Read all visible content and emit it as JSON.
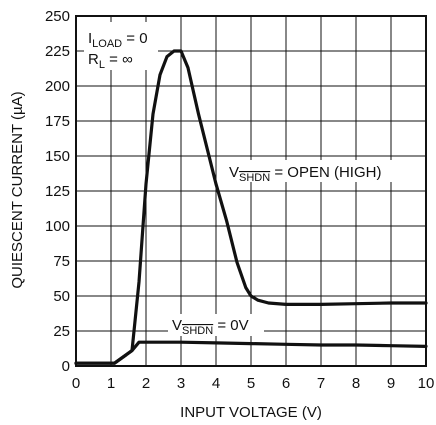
{
  "chart_data": {
    "type": "line",
    "xlabel": "INPUT VOLTAGE (V)",
    "ylabel": "QUIESCENT CURRENT (µA)",
    "xlim": [
      0,
      10
    ],
    "ylim": [
      0,
      250
    ],
    "x_ticks": [
      "0",
      "1",
      "2",
      "3",
      "4",
      "5",
      "6",
      "7",
      "8",
      "9",
      "10"
    ],
    "y_ticks": [
      "0",
      "25",
      "50",
      "75",
      "100",
      "125",
      "150",
      "175",
      "200",
      "225",
      "250"
    ],
    "grid": true,
    "annotations": {
      "conditions": {
        "iload_main": "I",
        "iload_sub": "LOAD",
        "iload_rest": " = 0",
        "rl_main": "R",
        "rl_sub": "L",
        "rl_rest": " = ∞"
      },
      "series_open": {
        "v": "V",
        "sub": "SHDN",
        "rest": " = OPEN (HIGH)"
      },
      "series_zero": {
        "v": "V",
        "sub": "SHDN",
        "rest": " = 0V"
      }
    },
    "series": [
      {
        "id": "open",
        "color": "#111111",
        "x": [
          0,
          1.1,
          1.6,
          1.8,
          2.0,
          2.2,
          2.4,
          2.6,
          2.8,
          3.0,
          3.2,
          3.5,
          4.0,
          4.3,
          4.6,
          4.85,
          5.0,
          5.2,
          5.5,
          6.0,
          7.0,
          8.0,
          9.0,
          10.0
        ],
        "y": [
          2,
          2,
          11,
          60,
          130,
          180,
          208,
          221,
          225,
          225,
          213,
          180,
          130,
          104,
          74,
          56,
          50,
          47,
          45,
          44,
          44,
          44.5,
          45,
          45
        ]
      },
      {
        "id": "zero",
        "color": "#111111",
        "x": [
          0,
          1.1,
          1.6,
          1.8,
          2.0,
          3.0,
          4.0,
          5.0,
          6.0,
          7.0,
          8.0,
          9.0,
          10.0
        ],
        "y": [
          2,
          2,
          11,
          17,
          17,
          17,
          16.5,
          16,
          15.5,
          15,
          15,
          14.5,
          14
        ]
      }
    ]
  }
}
